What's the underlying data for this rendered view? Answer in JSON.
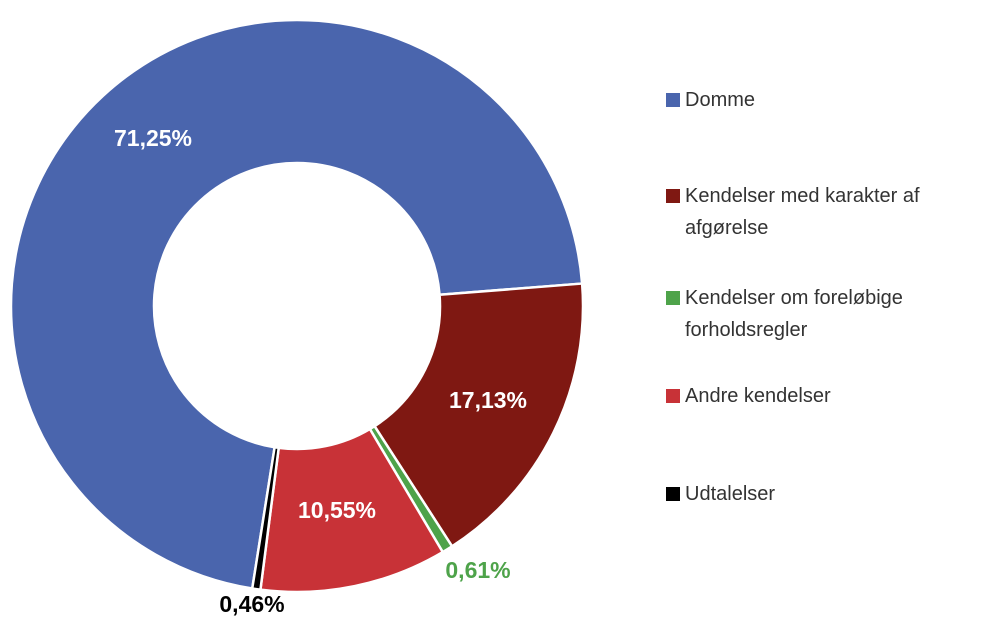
{
  "chart_data": {
    "type": "pie",
    "categories": [
      "Domme",
      "Kendelser med karakter af afgørelse",
      "Kendelser om foreløbige forholdsregler",
      "Andre kendelser",
      "Udtalelser"
    ],
    "values": [
      71.25,
      17.13,
      0.61,
      10.55,
      0.46
    ],
    "value_labels": [
      "71,25%",
      "17,13%",
      "0,61%",
      "10,55%",
      "0,46%"
    ],
    "colors": [
      "#4a65ad",
      "#7f1812",
      "#4ea34a",
      "#c83237",
      "#000000"
    ],
    "legend": "right"
  }
}
